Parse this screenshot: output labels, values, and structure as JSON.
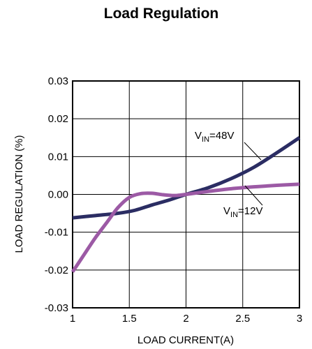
{
  "chart_data": {
    "type": "line",
    "title": "Load Regulation",
    "xlabel": "LOAD CURRENT(A)",
    "ylabel": "LOAD REGULATION (%)",
    "xlim": [
      1,
      3
    ],
    "ylim": [
      -0.03,
      0.03
    ],
    "x_ticks": [
      1,
      1.5,
      2,
      2.5,
      3
    ],
    "x_tick_labels": [
      "1",
      "1.5",
      "2",
      "2.5",
      "3"
    ],
    "y_ticks": [
      0.03,
      0.02,
      0.01,
      0.0,
      -0.01,
      -0.02,
      -0.03
    ],
    "y_tick_labels": [
      "0.03",
      "0.02",
      "0.01",
      "0.00",
      "-0.01",
      "-0.02",
      "-0.03"
    ],
    "grid": true,
    "legend": "none",
    "series": [
      {
        "name": "VIN=48V",
        "color": "#2b2d63",
        "x": [
          1.0,
          1.2,
          1.4,
          1.55,
          1.7,
          1.85,
          2.0,
          2.2,
          2.4,
          2.6,
          2.8,
          3.0
        ],
        "y": [
          -0.0062,
          -0.0056,
          -0.005,
          -0.0042,
          -0.0028,
          -0.0015,
          0.0,
          0.0018,
          0.0042,
          0.0072,
          0.011,
          0.015
        ]
      },
      {
        "name": "VIN=12V",
        "color": "#9c5aa5",
        "x": [
          1.0,
          1.1,
          1.2,
          1.3,
          1.4,
          1.5,
          1.6,
          1.7,
          1.8,
          1.9,
          2.0,
          2.2,
          2.4,
          2.6,
          2.8,
          3.0
        ],
        "y": [
          -0.0205,
          -0.016,
          -0.0115,
          -0.0075,
          -0.0035,
          -0.0008,
          0.0002,
          0.0003,
          -0.0001,
          -0.0003,
          0.0,
          0.0008,
          0.0015,
          0.002,
          0.0024,
          0.0027
        ]
      }
    ],
    "annotations": [
      {
        "main": "V",
        "sub": "IN",
        "rest": "=48V"
      },
      {
        "main": "V",
        "sub": "IN",
        "rest": "=12V"
      }
    ]
  }
}
